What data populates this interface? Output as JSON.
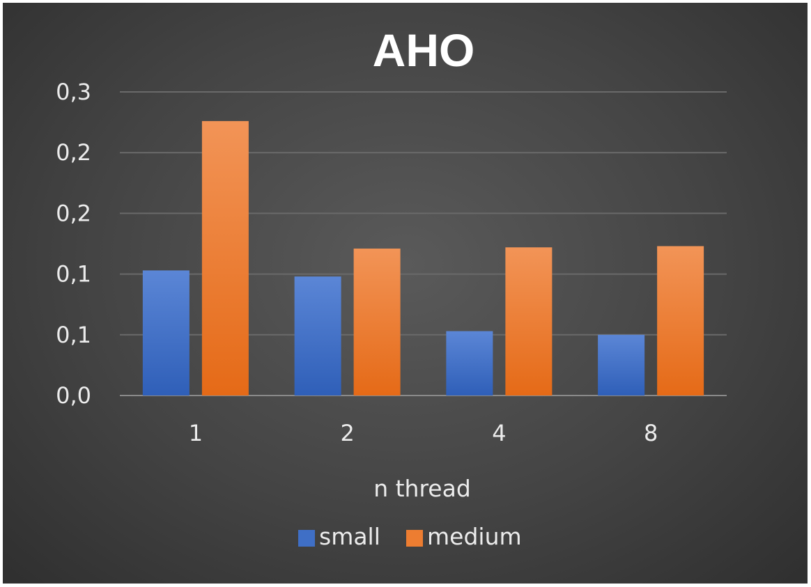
{
  "chart_data": {
    "type": "bar",
    "title": "AHO",
    "xlabel": "n thread",
    "ylabel": "",
    "categories": [
      "1",
      "2",
      "4",
      "8"
    ],
    "y_tick_labels": [
      "0,0",
      "0,1",
      "0,1",
      "0,2",
      "0,2",
      "0,3"
    ],
    "ylim": [
      0,
      0.25
    ],
    "grid": true,
    "legend_position": "bottom",
    "series": [
      {
        "name": "small",
        "color": "#4472c4",
        "values": [
          0.103,
          0.098,
          0.053,
          0.05
        ]
      },
      {
        "name": "medium",
        "color": "#ed7d31",
        "values": [
          0.226,
          0.121,
          0.122,
          0.123
        ]
      }
    ]
  }
}
